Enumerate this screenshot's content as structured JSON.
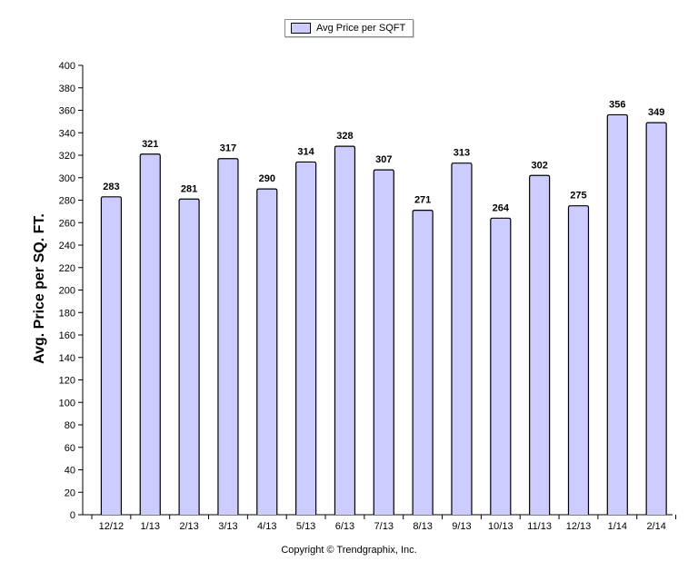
{
  "legend": {
    "label": "Avg Price per SQFT"
  },
  "footer": {
    "copyright": "Copyright © Trendgraphix, Inc."
  },
  "chart_data": {
    "type": "bar",
    "title": "",
    "xlabel": "",
    "ylabel": "Avg. Price per SQ. FT.",
    "categories": [
      "12/12",
      "1/13",
      "2/13",
      "3/13",
      "4/13",
      "5/13",
      "6/13",
      "7/13",
      "8/13",
      "9/13",
      "10/13",
      "11/13",
      "12/13",
      "1/14",
      "2/14"
    ],
    "series": [
      {
        "name": "Avg Price per SQFT",
        "values": [
          283,
          321,
          281,
          317,
          290,
          314,
          328,
          307,
          271,
          313,
          264,
          302,
          275,
          356,
          349
        ]
      }
    ],
    "ylim": [
      0,
      400
    ],
    "yticks": [
      0,
      20,
      40,
      60,
      80,
      100,
      120,
      140,
      160,
      180,
      200,
      220,
      240,
      260,
      280,
      300,
      320,
      340,
      360,
      380,
      400
    ],
    "grid": false,
    "legend_position": "top-center",
    "colors": {
      "bar_fill": "#ccccff",
      "bar_stroke": "#000000"
    }
  }
}
